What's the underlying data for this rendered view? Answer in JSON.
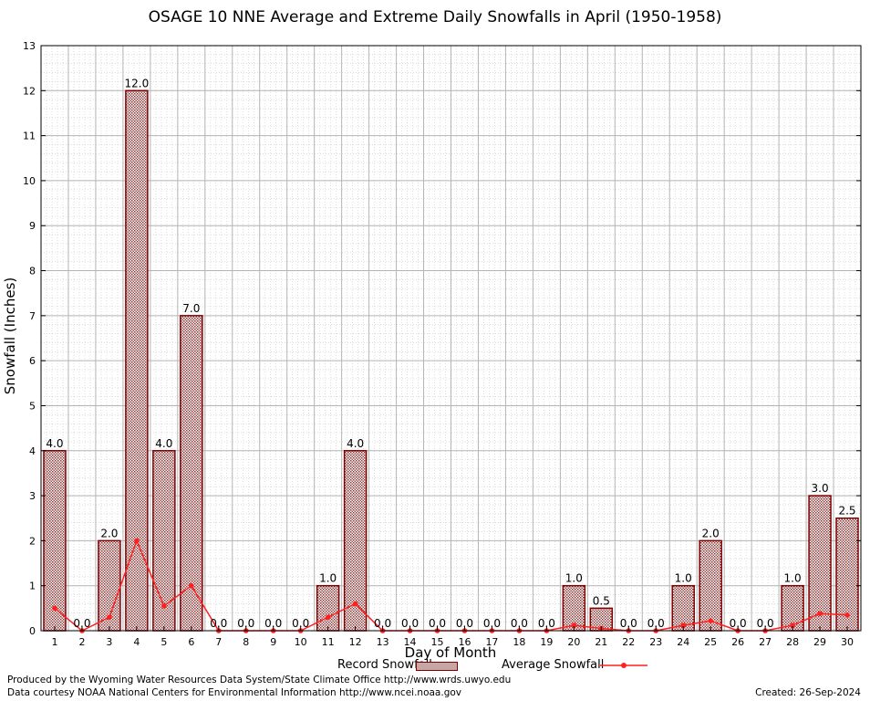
{
  "chart_data": {
    "type": "bar",
    "title": "OSAGE 10 NNE Average and Extreme Daily Snowfalls in April (1950-1958)",
    "xlabel": "Day of Month",
    "ylabel": "Snowfall (Inches)",
    "ylim": [
      0,
      13
    ],
    "yticks": [
      "0",
      "1",
      "2",
      "3",
      "4",
      "5",
      "6",
      "7",
      "8",
      "9",
      "10",
      "11",
      "12",
      "13"
    ],
    "grid": true,
    "categories": [
      "1",
      "2",
      "3",
      "4",
      "5",
      "6",
      "7",
      "8",
      "9",
      "10",
      "11",
      "12",
      "13",
      "14",
      "15",
      "16",
      "17",
      "18",
      "19",
      "20",
      "21",
      "22",
      "23",
      "24",
      "25",
      "26",
      "27",
      "28",
      "29",
      "30"
    ],
    "series": [
      {
        "name": "Record Snowfall",
        "kind": "bar",
        "color": "#800000",
        "values": [
          4.0,
          0.0,
          2.0,
          12.0,
          4.0,
          7.0,
          0.0,
          0.0,
          0.0,
          0.0,
          1.0,
          4.0,
          0.0,
          0.0,
          0.0,
          0.0,
          0.0,
          0.0,
          0.0,
          1.0,
          0.5,
          0.0,
          0.0,
          1.0,
          2.0,
          0.0,
          0.0,
          1.0,
          3.0,
          2.5
        ],
        "labels": [
          "4.0",
          "0.0",
          "2.0",
          "12.0",
          "4.0",
          "7.0",
          "0.0",
          "0.0",
          "0.0",
          "0.0",
          "1.0",
          "4.0",
          "0.0",
          "0.0",
          "0.0",
          "0.0",
          "0.0",
          "0.0",
          "0.0",
          "1.0",
          "0.5",
          "0.0",
          "0.0",
          "1.0",
          "2.0",
          "0.0",
          "0.0",
          "1.0",
          "3.0",
          "2.5"
        ]
      },
      {
        "name": "Average Snowfall",
        "kind": "line",
        "color": "#ff2020",
        "values": [
          0.5,
          0.0,
          0.3,
          2.0,
          0.55,
          1.0,
          0.0,
          0.0,
          0.0,
          0.0,
          0.3,
          0.6,
          0.0,
          0.0,
          0.0,
          0.0,
          0.0,
          0.0,
          0.0,
          0.12,
          0.05,
          0.0,
          0.0,
          0.12,
          0.22,
          0.0,
          0.0,
          0.12,
          0.38,
          0.35
        ]
      }
    ],
    "legend": "bottom-center"
  },
  "credits": {
    "line1": "Produced by the Wyoming Water Resources Data System/State Climate Office http://www.wrds.uwyo.edu",
    "line2": "Data courtesy NOAA National Centers for Environmental Information http://www.ncei.noaa.gov",
    "created": "Created:  26-Sep-2024"
  }
}
